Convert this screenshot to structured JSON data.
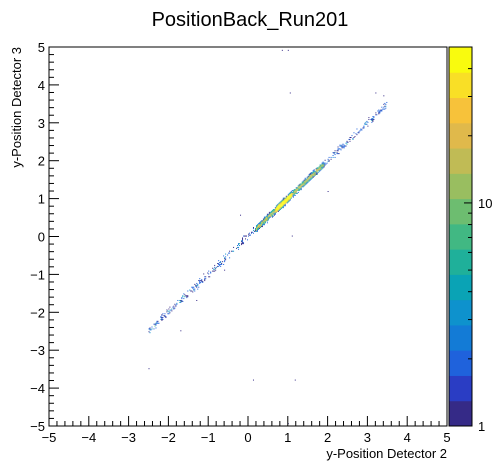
{
  "chart_data": {
    "type": "heatmap",
    "title": "PositionBack_Run201",
    "xlabel": "y-Position Detector 2",
    "ylabel": "y-Position Detector 3",
    "xlim": [
      -5,
      5
    ],
    "ylim": [
      -5,
      5
    ],
    "x_ticks": [
      "−5",
      "−4",
      "−3",
      "−2",
      "−1",
      "0",
      "1",
      "2",
      "3",
      "4",
      "5"
    ],
    "y_ticks": [
      "−5",
      "−4",
      "−3",
      "−2",
      "−1",
      "0",
      "1",
      "2",
      "3",
      "4",
      "5"
    ],
    "x_tick_values": [
      -5,
      -4,
      -3,
      -2,
      -1,
      0,
      1,
      2,
      3,
      4,
      5
    ],
    "y_tick_values": [
      -5,
      -4,
      -3,
      -2,
      -1,
      0,
      1,
      2,
      3,
      4,
      5
    ],
    "colorbar": {
      "scale": "log",
      "min": 1,
      "max": 50,
      "tick_labels": [
        "1",
        "10"
      ],
      "tick_values": [
        1,
        10
      ],
      "palette": [
        "#352a87",
        "#2a3dc4",
        "#1f62dc",
        "#137bd6",
        "#0e92cd",
        "#0aa3b5",
        "#1fb09a",
        "#41b883",
        "#6dbd70",
        "#99be60",
        "#c0bb55",
        "#e0b94b",
        "#f7c23a",
        "#f9df26",
        "#f9fb0e"
      ]
    },
    "ridge": {
      "description_values": "dense band along y = x between x=0.2 and x=1.9",
      "core_x_range": [
        0.2,
        1.9
      ],
      "peak_x_range": [
        0.7,
        1.1
      ],
      "tail_x_range": [
        -2.5,
        3.5
      ]
    },
    "outliers": [
      {
        "x": 0.85,
        "y": 4.9
      },
      {
        "x": 1.0,
        "y": 4.9
      },
      {
        "x": 1.05,
        "y": 3.8
      },
      {
        "x": 0.15,
        "y": -3.8
      },
      {
        "x": 1.2,
        "y": -3.8
      },
      {
        "x": 1.0,
        "y": -4.95
      },
      {
        "x": -2.5,
        "y": -3.5
      },
      {
        "x": -1.7,
        "y": -2.5
      },
      {
        "x": -0.2,
        "y": 0.55
      },
      {
        "x": 1.1,
        "y": 0.0
      },
      {
        "x": 2.0,
        "y": 1.2
      },
      {
        "x": 3.2,
        "y": 3.8
      },
      {
        "x": 3.4,
        "y": 3.7
      },
      {
        "x": -1.3,
        "y": -1.7
      },
      {
        "x": -0.6,
        "y": -0.9
      }
    ]
  }
}
